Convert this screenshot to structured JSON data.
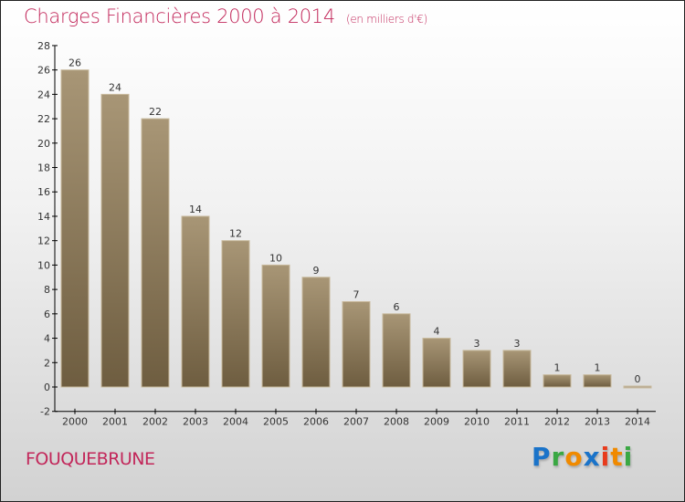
{
  "chart_data": {
    "type": "bar",
    "title": "Charges Financières 2000 à 2014",
    "subtitle": "(en milliers d'€)",
    "categories": [
      "2000",
      "2001",
      "2002",
      "2003",
      "2004",
      "2005",
      "2006",
      "2007",
      "2008",
      "2009",
      "2010",
      "2011",
      "2012",
      "2013",
      "2014"
    ],
    "values": [
      26,
      24,
      22,
      14,
      12,
      10,
      9,
      7,
      6,
      4,
      3,
      3,
      1,
      1,
      0
    ],
    "ylim": [
      -2,
      28
    ],
    "yticks": [
      -2,
      0,
      2,
      4,
      6,
      8,
      10,
      12,
      14,
      16,
      18,
      20,
      22,
      24,
      26,
      28
    ],
    "xlabel": "",
    "ylabel": "",
    "grid": false
  },
  "town": "FOUQUEBRUNE",
  "logo": {
    "letters": [
      "P",
      "r",
      "o",
      "x",
      "i",
      "t",
      "i"
    ],
    "colors": [
      "#1a73c9",
      "#3aa843",
      "#f08a00",
      "#1a73c9",
      "#e83b1c",
      "#f08a00",
      "#3aa843"
    ]
  },
  "colors": {
    "bar_top": "#a89676",
    "bar_bottom": "#6e5d40",
    "title": "#c2275a"
  }
}
